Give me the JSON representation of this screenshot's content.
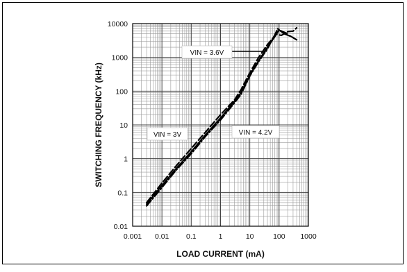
{
  "chart_data": {
    "type": "line",
    "xlabel": "LOAD CURRENT (mA)",
    "ylabel": "SWITCHING FREQUENCY (kHz)",
    "x_scale": "log",
    "y_scale": "log",
    "xlim": [
      0.001,
      1000
    ],
    "ylim": [
      0.01,
      10000
    ],
    "x_ticks": [
      "0.001",
      "0.01",
      "0.1",
      "1",
      "10",
      "100",
      "1000"
    ],
    "y_ticks": [
      "0.01",
      "0.1",
      "1",
      "10",
      "100",
      "1000",
      "10000"
    ],
    "grid": true,
    "annotations": [
      {
        "text": "VIN = 3.6V"
      },
      {
        "text": "VIN = 3V"
      },
      {
        "text": "VIN = 4.2V"
      }
    ],
    "series": [
      {
        "style": "solid",
        "color": "#000000",
        "x": [
          0.003,
          0.01,
          0.03,
          0.1,
          0.3,
          1,
          3,
          5,
          10,
          20,
          40,
          70,
          100,
          150,
          250,
          400
        ],
        "y": [
          0.045,
          0.16,
          0.5,
          1.6,
          5,
          16,
          50,
          90,
          300,
          800,
          2000,
          4000,
          6500,
          5000,
          4200,
          3300
        ]
      },
      {
        "style": "dashed",
        "color": "#000000",
        "x": [
          0.003,
          0.01,
          0.03,
          0.1,
          0.3,
          1,
          3,
          5,
          10,
          20,
          40,
          80,
          120,
          200,
          300,
          400
        ],
        "y": [
          0.05,
          0.19,
          0.6,
          2,
          6,
          20,
          55,
          110,
          350,
          1000,
          2400,
          4800,
          4500,
          5800,
          6000,
          7500
        ]
      },
      {
        "style": "dash-dot",
        "color": "#000000",
        "x": [
          0.003,
          0.01,
          0.03,
          0.1,
          0.3,
          1,
          3,
          5,
          10,
          20,
          40,
          70,
          90,
          120,
          200
        ],
        "y": [
          0.04,
          0.14,
          0.45,
          1.4,
          4.5,
          14,
          45,
          80,
          280,
          750,
          1800,
          4500,
          7000,
          6000,
          5000
        ]
      }
    ]
  }
}
